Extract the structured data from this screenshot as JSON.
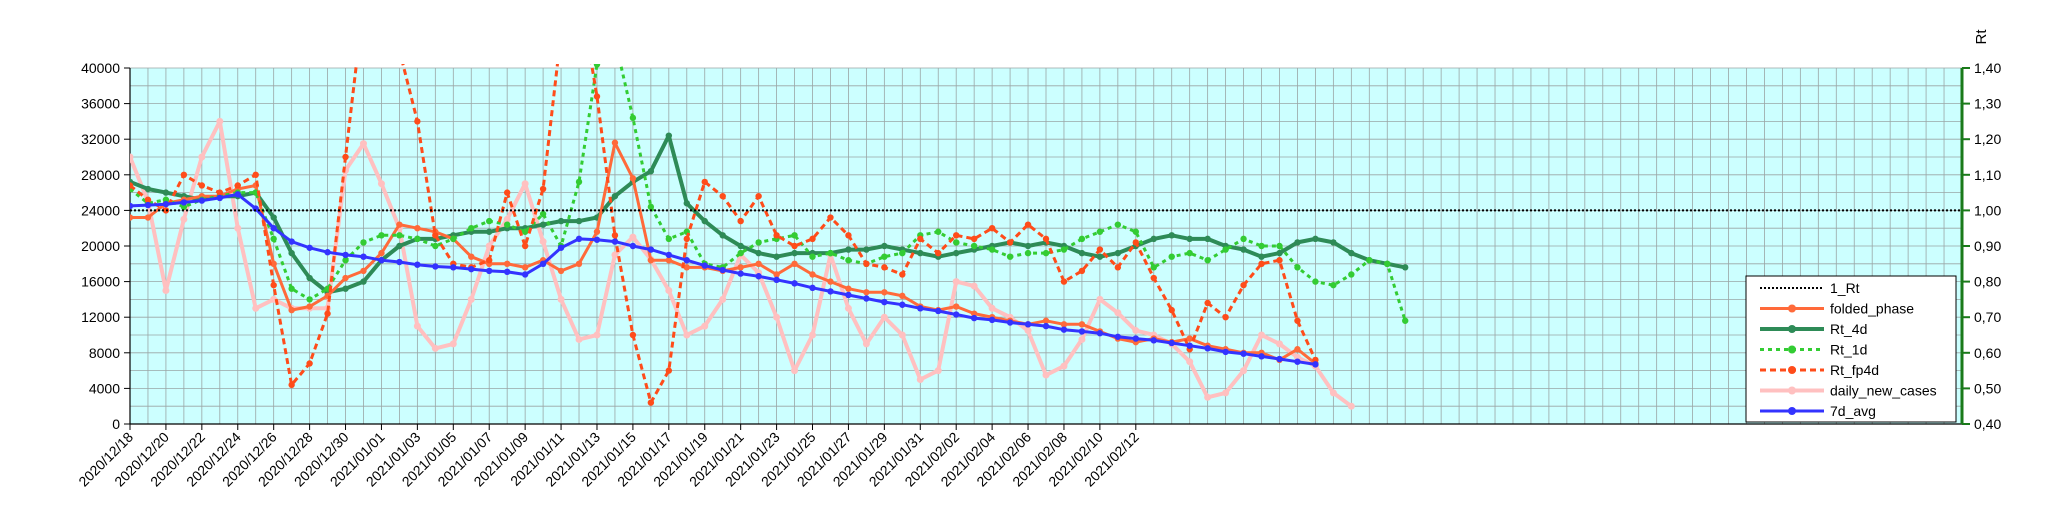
{
  "chart_data": {
    "type": "line",
    "title": "",
    "xlabel": "",
    "ylabel": "",
    "y2label": "Rt",
    "ylim": [
      0,
      40000
    ],
    "y2lim": [
      0.4,
      1.4
    ],
    "yticks": [
      "0",
      "4000",
      "8000",
      "12000",
      "16000",
      "20000",
      "24000",
      "28000",
      "32000",
      "36000",
      "40000"
    ],
    "y2ticks": [
      "0,40",
      "0,50",
      "0,60",
      "0,70",
      "0,80",
      "0,90",
      "1,00",
      "1,10",
      "1,20",
      "1,30",
      "1,40"
    ],
    "x_start": "2020/12/18",
    "x_end": "2021/03/30",
    "grid": true,
    "background": "#ccffff",
    "gridcolor": "#9aa5a5",
    "legend_position": "right",
    "x_ticks": [
      "2020/12/18",
      "2020/12/20",
      "2020/12/22",
      "2020/12/24",
      "2020/12/26",
      "2020/12/28",
      "2020/12/30",
      "2021/01/01",
      "2021/01/03",
      "2021/01/05",
      "2021/01/07",
      "2021/01/09",
      "2021/01/11",
      "2021/01/13",
      "2021/01/15",
      "2021/01/17",
      "2021/01/19",
      "2021/01/21",
      "2021/01/23",
      "2021/01/25",
      "2021/01/27",
      "2021/01/29",
      "2021/01/31",
      "2021/02/02",
      "2021/02/04",
      "2021/02/06",
      "2021/02/08",
      "2021/02/10",
      "2021/02/12"
    ],
    "series": [
      {
        "name": "1_Rt",
        "axis": "right",
        "color": "#000000",
        "width": 2,
        "dash": "2,2",
        "marker": "none",
        "start": "2020/12/18",
        "values": [
          1.0,
          1.0
        ]
      },
      {
        "name": "folded_phase",
        "axis": "right",
        "color": "#ff6a3a",
        "width": 3,
        "dash": "",
        "marker": "dot",
        "start": "2020/12/18",
        "values": [
          0.98,
          0.98,
          1.02,
          1.03,
          1.04,
          1.04,
          1.06,
          1.07,
          0.85,
          0.72,
          0.73,
          0.76,
          0.81,
          0.83,
          0.88,
          0.96,
          0.95,
          0.94,
          0.92,
          0.87,
          0.85,
          0.85,
          0.84,
          0.86,
          0.83,
          0.85,
          0.94,
          1.19,
          1.09,
          0.86,
          0.86,
          0.84,
          0.84,
          0.83,
          0.84,
          0.85,
          0.82,
          0.85,
          0.82,
          0.8,
          0.78,
          0.77,
          0.77,
          0.76,
          0.73,
          0.72,
          0.73,
          0.71,
          0.7,
          0.69,
          0.68,
          0.69,
          0.68,
          0.68,
          0.66,
          0.64,
          0.63,
          0.64,
          0.63,
          0.64,
          0.62,
          0.61,
          0.6,
          0.6,
          0.58,
          0.61,
          0.57
        ]
      },
      {
        "name": "Rt_4d",
        "axis": "right",
        "color": "#2e8b57",
        "width": 4,
        "dash": "",
        "marker": "dot",
        "start": "2020/12/18",
        "values": [
          1.08,
          1.06,
          1.05,
          1.04,
          1.03,
          1.04,
          1.04,
          1.05,
          0.98,
          0.88,
          0.81,
          0.77,
          0.78,
          0.8,
          0.86,
          0.9,
          0.92,
          0.92,
          0.93,
          0.94,
          0.94,
          0.95,
          0.95,
          0.96,
          0.97,
          0.97,
          0.98,
          1.04,
          1.08,
          1.11,
          1.21,
          1.02,
          0.97,
          0.93,
          0.9,
          0.88,
          0.87,
          0.88,
          0.88,
          0.88,
          0.89,
          0.89,
          0.9,
          0.89,
          0.88,
          0.87,
          0.88,
          0.89,
          0.9,
          0.91,
          0.9,
          0.91,
          0.9,
          0.88,
          0.87,
          0.88,
          0.9,
          0.92,
          0.93,
          0.92,
          0.92,
          0.9,
          0.89,
          0.87,
          0.88,
          0.91,
          0.92,
          0.91,
          0.88,
          0.86,
          0.85,
          0.84
        ]
      },
      {
        "name": "Rt_1d",
        "axis": "right",
        "color": "#33cc33",
        "width": 3,
        "dash": "4,4",
        "marker": "dot",
        "start": "2020/12/18",
        "values": [
          1.06,
          1.02,
          1.03,
          1.01,
          1.03,
          1.04,
          1.05,
          1.05,
          0.92,
          0.78,
          0.75,
          0.78,
          0.86,
          0.91,
          0.93,
          0.93,
          0.92,
          0.9,
          0.92,
          0.95,
          0.97,
          0.96,
          0.94,
          0.99,
          0.9,
          1.08,
          1.41,
          1.48,
          1.26,
          1.01,
          0.92,
          0.94,
          0.85,
          0.84,
          0.88,
          0.91,
          0.92,
          0.93,
          0.87,
          0.88,
          0.86,
          0.85,
          0.87,
          0.88,
          0.93,
          0.94,
          0.91,
          0.9,
          0.89,
          0.87,
          0.88,
          0.88,
          0.89,
          0.92,
          0.94,
          0.96,
          0.94,
          0.84,
          0.87,
          0.88,
          0.86,
          0.89,
          0.92,
          0.9,
          0.9,
          0.84,
          0.8,
          0.79,
          0.82,
          0.86,
          0.85,
          0.69
        ]
      },
      {
        "name": "Rt_fp4d",
        "axis": "right",
        "color": "#ff4c1a",
        "width": 3,
        "dash": "6,4",
        "marker": "dot",
        "start": "2020/12/18",
        "values": [
          1.07,
          1.03,
          1.0,
          1.1,
          1.07,
          1.05,
          1.07,
          1.1,
          0.79,
          0.51,
          0.57,
          0.71,
          1.15,
          1.58,
          1.61,
          1.45,
          1.25,
          0.93,
          0.85,
          0.84,
          0.86,
          1.05,
          0.9,
          1.06,
          1.5,
          1.62,
          1.32,
          0.93,
          0.65,
          0.46,
          0.55,
          0.92,
          1.08,
          1.04,
          0.97,
          1.04,
          0.93,
          0.9,
          0.92,
          0.98,
          0.93,
          0.85,
          0.84,
          0.82,
          0.92,
          0.88,
          0.93,
          0.92,
          0.95,
          0.91,
          0.96,
          0.92,
          0.8,
          0.83,
          0.89,
          0.84,
          0.91,
          0.81,
          0.72,
          0.61,
          0.74,
          0.7,
          0.79,
          0.85,
          0.86,
          0.69,
          0.58
        ]
      },
      {
        "name": "daily_new_cases",
        "axis": "left",
        "color": "#ffc0c0",
        "width": 4,
        "dash": "",
        "marker": "dot",
        "start": "2020/12/18",
        "values": [
          30000,
          25000,
          15000,
          23000,
          30000,
          34000,
          22000,
          13000,
          14000,
          13000,
          13000,
          13000,
          28500,
          31500,
          27000,
          22000,
          11000,
          8500,
          9000,
          14000,
          20000,
          23000,
          27000,
          20500,
          14000,
          9500,
          10000,
          19000,
          21000,
          18500,
          15000,
          10000,
          11000,
          14000,
          19000,
          17000,
          12000,
          6000,
          10000,
          19000,
          13000,
          9000,
          12000,
          10000,
          5000,
          6000,
          16000,
          15500,
          13000,
          12000,
          10500,
          5500,
          6500,
          9500,
          14000,
          12500,
          10500,
          10000,
          9000,
          7000,
          3000,
          3500,
          6000,
          10000,
          9000,
          7500,
          6500,
          3500,
          2000
        ]
      },
      {
        "name": "7d_avg",
        "axis": "left",
        "color": "#3333ff",
        "width": 3,
        "dash": "",
        "marker": "dot",
        "start": "2020/12/18",
        "values": [
          24500,
          24600,
          24700,
          24900,
          25100,
          25400,
          25800,
          24200,
          22000,
          20500,
          19800,
          19300,
          19000,
          18800,
          18400,
          18200,
          17900,
          17700,
          17600,
          17400,
          17200,
          17100,
          16800,
          18000,
          19800,
          20800,
          20700,
          20500,
          20000,
          19600,
          19000,
          18400,
          17800,
          17300,
          16900,
          16600,
          16200,
          15800,
          15300,
          14900,
          14500,
          14100,
          13700,
          13400,
          13000,
          12700,
          12300,
          11900,
          11700,
          11400,
          11200,
          11000,
          10600,
          10400,
          10200,
          9800,
          9600,
          9400,
          9100,
          8800,
          8500,
          8100,
          7900,
          7600,
          7300,
          7000,
          6700
        ]
      }
    ],
    "legend": [
      "1_Rt",
      "folded_phase",
      "Rt_4d",
      "Rt_1d",
      "Rt_fp4d",
      "daily_new_cases",
      "7d_avg"
    ]
  }
}
